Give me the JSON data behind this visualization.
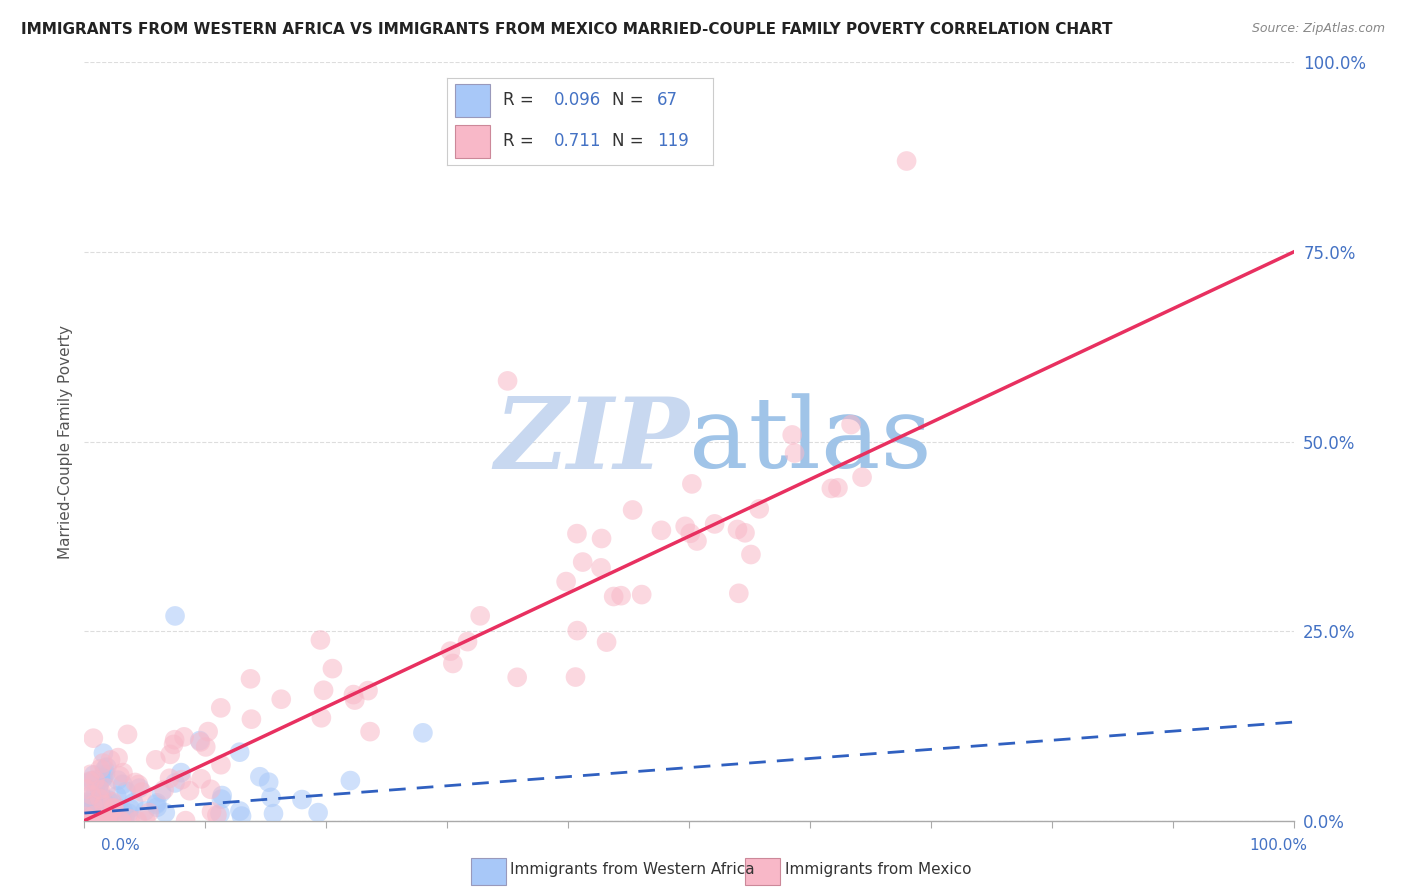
{
  "title": "IMMIGRANTS FROM WESTERN AFRICA VS IMMIGRANTS FROM MEXICO MARRIED-COUPLE FAMILY POVERTY CORRELATION CHART",
  "source": "Source: ZipAtlas.com",
  "ylabel": "Married-Couple Family Poverty",
  "R_western": 0.096,
  "N_western": 67,
  "R_mexico": 0.711,
  "N_mexico": 119,
  "color_western": "#a8c8f8",
  "color_mexico": "#f8b8c8",
  "color_line_western": "#3060c0",
  "color_line_mexico": "#e83060",
  "watermark_color": "#c8d8f0",
  "background_color": "#ffffff",
  "grid_color": "#dddddd",
  "title_color": "#222222",
  "axis_label_color": "#4472c4",
  "source_color": "#888888"
}
